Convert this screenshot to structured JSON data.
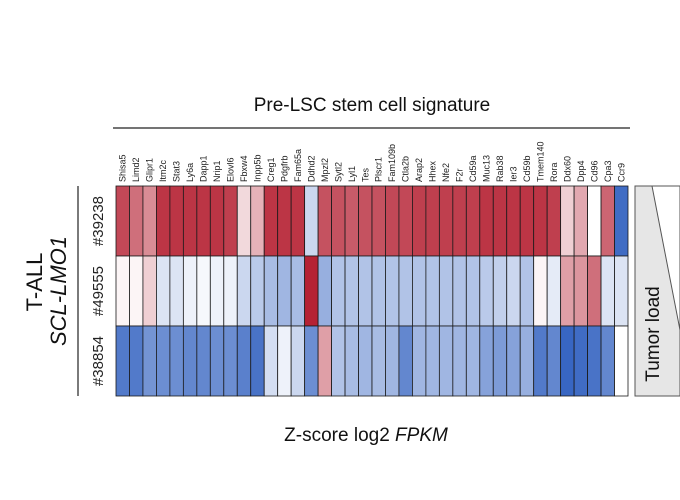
{
  "chart_data": {
    "type": "heatmap",
    "title": "Pre-LSC stem cell signature",
    "xlabel_main": "Z-score log2 ",
    "xlabel_italic": "FPKM",
    "group_label_line1": "T-ALL",
    "group_label_line2": "SCL-LMO1",
    "side_label": "Tumor load",
    "genes": [
      "Shisa5",
      "Limd2",
      "Glipr1",
      "Itm2c",
      "Stat3",
      "Ly6a",
      "Dapp1",
      "Nrip1",
      "Elovl6",
      "Fbxw4",
      "Inpp5b",
      "Creg1",
      "Pdgfrb",
      "Fam65a",
      "Ddhd2",
      "Mpzl2",
      "Sytl2",
      "Lyl1",
      "Tes",
      "Plscr1",
      "Fam109b",
      "Ctla2b",
      "Arap2",
      "Hhex",
      "Nfe2",
      "F2r",
      "Cd59a",
      "Muc13",
      "Rab38",
      "Ier3",
      "Cd59b",
      "Tmem140",
      "Rora",
      "Ddx60",
      "Dpp4",
      "Cd96",
      "Cpa3",
      "Ccr9"
    ],
    "samples": [
      "#39238",
      "#49555",
      "#38854"
    ],
    "values": [
      [
        0.95,
        0.75,
        0.6,
        1.05,
        1.05,
        1.05,
        1.05,
        1.05,
        1.0,
        0.2,
        0.4,
        1.05,
        1.05,
        1.05,
        -0.3,
        0.9,
        0.9,
        0.85,
        0.9,
        0.9,
        0.95,
        0.95,
        1.0,
        1.0,
        1.0,
        1.0,
        1.0,
        1.05,
        1.05,
        1.05,
        1.05,
        1.05,
        1.0,
        0.25,
        0.45,
        0.0,
        0.8,
        -1.1
      ],
      [
        0.05,
        0.05,
        0.25,
        -0.2,
        -0.2,
        -0.1,
        -0.05,
        -0.1,
        -0.1,
        -0.3,
        -0.4,
        -0.5,
        -0.55,
        -0.5,
        1.15,
        -0.6,
        -0.45,
        -0.45,
        -0.45,
        -0.45,
        -0.45,
        -0.45,
        -0.45,
        -0.45,
        -0.45,
        -0.45,
        -0.45,
        -0.4,
        -0.35,
        -0.3,
        -0.45,
        0.05,
        -0.15,
        0.5,
        0.55,
        0.75,
        -0.2,
        -0.2
      ],
      [
        -1.0,
        -1.0,
        -0.8,
        -0.85,
        -0.85,
        -0.9,
        -0.9,
        -0.85,
        -0.85,
        -0.95,
        -1.05,
        -0.25,
        -0.1,
        -0.3,
        -0.85,
        0.5,
        -0.45,
        -0.5,
        -0.55,
        -0.5,
        -0.55,
        -0.9,
        -0.55,
        -0.55,
        -0.55,
        -0.55,
        -0.55,
        -0.7,
        -0.75,
        -0.7,
        -0.6,
        -1.0,
        -0.9,
        -1.15,
        -1.1,
        -1.05,
        -0.9,
        0.0
      ]
    ],
    "color_scale": {
      "low": "#2f5fbf",
      "mid": "#ffffff",
      "high": "#b2182b"
    },
    "vmin": -1.2,
    "vmax": 1.2
  }
}
